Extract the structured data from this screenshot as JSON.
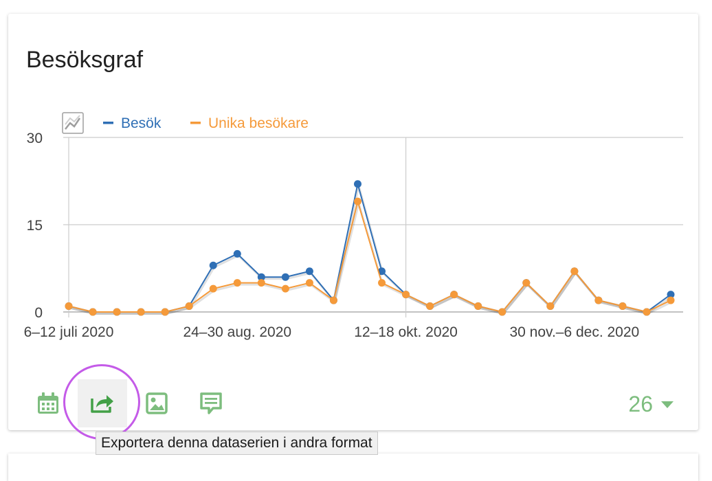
{
  "title": "Besöksgraf",
  "legend": [
    {
      "label": "Besök",
      "color": "#2f6fb5"
    },
    {
      "label": "Unika besökare",
      "color": "#f59a3a"
    }
  ],
  "toolbar": {
    "icons": [
      "calendar-icon",
      "export-icon",
      "image-icon",
      "annotation-icon"
    ],
    "period_value": "26",
    "tooltip": "Exportera denna dataserien i andra format"
  },
  "chart_data": {
    "type": "line",
    "ylim": [
      0,
      30
    ],
    "yticks": [
      0,
      15,
      30
    ],
    "xticks": [
      {
        "index": 0,
        "label": "6–12 juli 2020"
      },
      {
        "index": 7,
        "label": "24–30 aug. 2020"
      },
      {
        "index": 14,
        "label": "12–18 okt. 2020"
      },
      {
        "index": 21,
        "label": "30 nov.–6 dec. 2020"
      }
    ],
    "point_count": 26,
    "series": [
      {
        "name": "Besök",
        "color": "#2f6fb5",
        "values": [
          1,
          0,
          0,
          0,
          0,
          1,
          8,
          10,
          6,
          6,
          7,
          2,
          22,
          7,
          3,
          1,
          3,
          1,
          0,
          5,
          1,
          7,
          2,
          1,
          0,
          3
        ]
      },
      {
        "name": "Unika besökare",
        "color": "#f59a3a",
        "values": [
          1,
          0,
          0,
          0,
          0,
          1,
          4,
          5,
          5,
          4,
          5,
          2,
          19,
          5,
          3,
          1,
          3,
          1,
          0,
          5,
          1,
          7,
          2,
          1,
          0,
          2
        ]
      }
    ]
  }
}
